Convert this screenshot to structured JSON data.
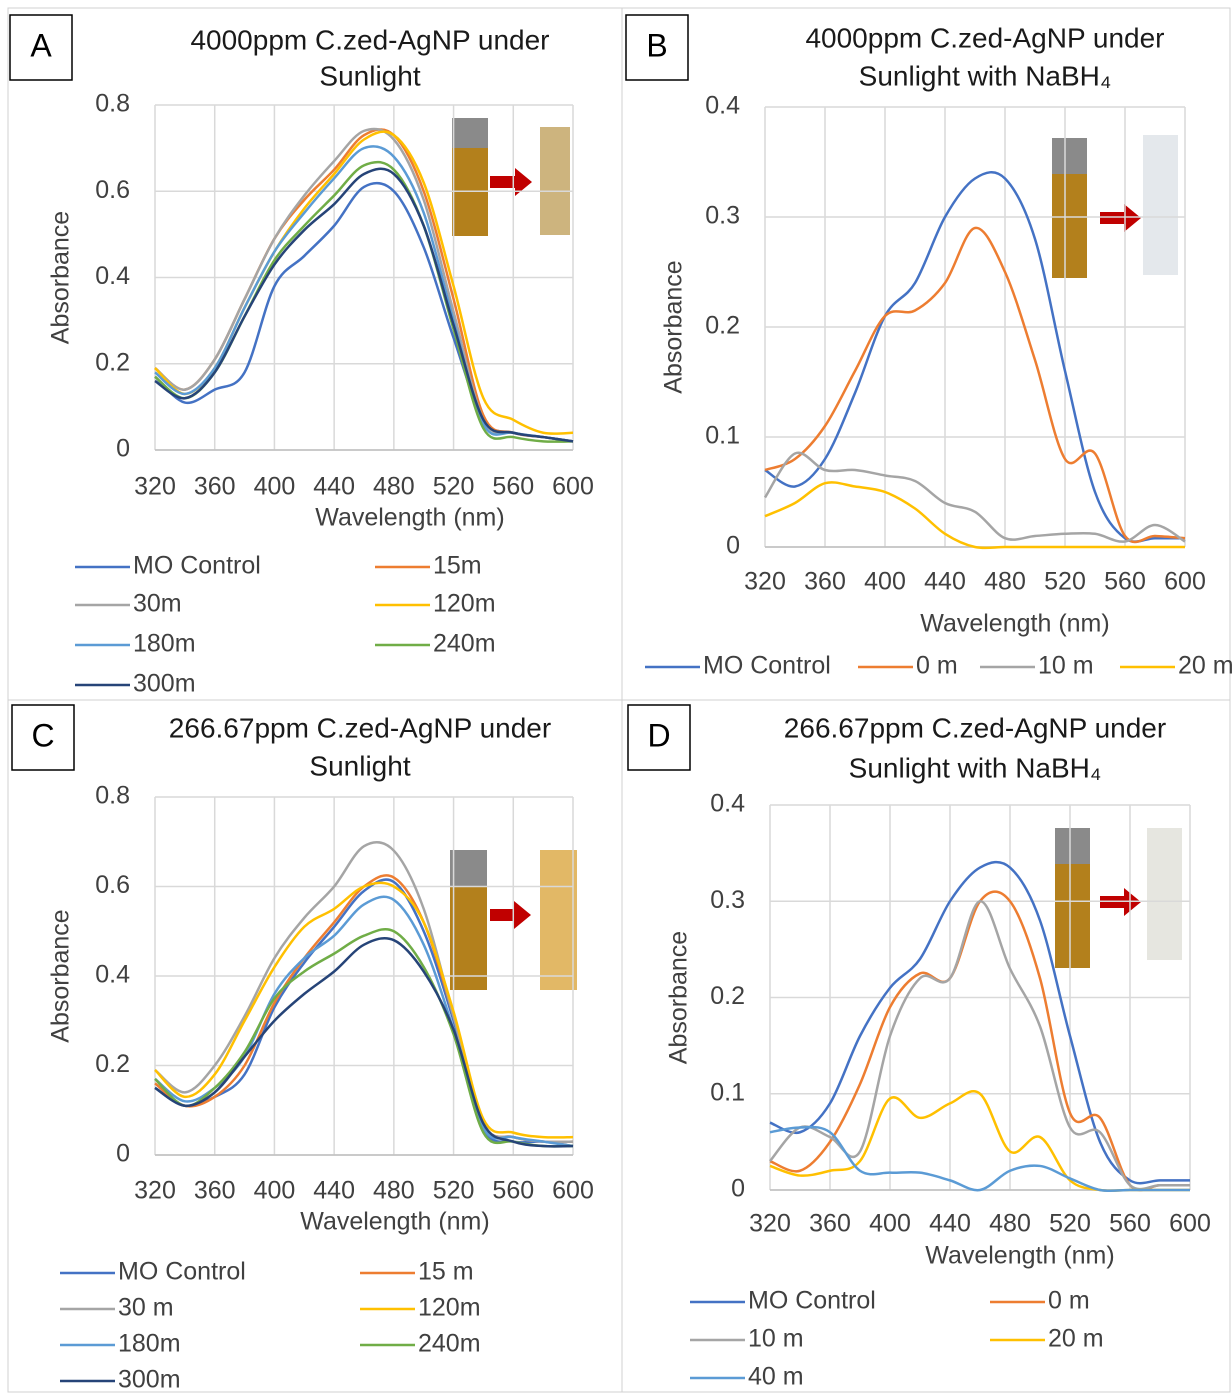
{
  "chart_data": [
    {
      "type": "line",
      "panel": "A",
      "title": [
        "4000ppm C.zed-AgNP under",
        "Sunlight"
      ],
      "x_label": "Wavelength (nm)",
      "y_label": "Absorbance",
      "x": [
        320,
        340,
        360,
        380,
        400,
        420,
        440,
        460,
        480,
        500,
        520,
        540,
        560,
        580,
        600
      ],
      "xlim": [
        320,
        600
      ],
      "xticks": [
        320,
        360,
        400,
        440,
        480,
        520,
        560,
        600
      ],
      "ylim": [
        0,
        0.8
      ],
      "yticks": [
        0,
        0.2,
        0.4,
        0.6,
        0.8
      ],
      "grid": true,
      "series": [
        {
          "name": "MO Control",
          "color": "#4472c4",
          "values": [
            0.17,
            0.11,
            0.14,
            0.18,
            0.38,
            0.45,
            0.52,
            0.61,
            0.6,
            0.47,
            0.26,
            0.07,
            0.04,
            0.03,
            0.02
          ]
        },
        {
          "name": "15m",
          "color": "#ed7d31",
          "values": [
            0.19,
            0.14,
            0.21,
            0.35,
            0.49,
            0.58,
            0.65,
            0.73,
            0.73,
            0.6,
            0.35,
            0.08,
            0.04,
            0.03,
            0.02
          ]
        },
        {
          "name": "30m",
          "color": "#a5a5a5",
          "values": [
            0.19,
            0.14,
            0.21,
            0.35,
            0.49,
            0.59,
            0.67,
            0.74,
            0.72,
            0.58,
            0.32,
            0.07,
            0.04,
            0.03,
            0.02
          ]
        },
        {
          "name": "120m",
          "color": "#ffc000",
          "values": [
            0.19,
            0.13,
            0.19,
            0.33,
            0.46,
            0.56,
            0.64,
            0.72,
            0.73,
            0.62,
            0.38,
            0.12,
            0.07,
            0.04,
            0.04
          ]
        },
        {
          "name": "180m",
          "color": "#5b9bd5",
          "values": [
            0.18,
            0.13,
            0.19,
            0.33,
            0.46,
            0.55,
            0.63,
            0.7,
            0.68,
            0.55,
            0.3,
            0.06,
            0.04,
            0.03,
            0.02
          ]
        },
        {
          "name": "240m",
          "color": "#70ad47",
          "values": [
            0.17,
            0.12,
            0.18,
            0.31,
            0.44,
            0.52,
            0.59,
            0.66,
            0.65,
            0.52,
            0.28,
            0.05,
            0.03,
            0.02,
            0.02
          ]
        },
        {
          "name": "300m",
          "color": "#264478",
          "values": [
            0.16,
            0.12,
            0.18,
            0.31,
            0.43,
            0.51,
            0.57,
            0.64,
            0.64,
            0.52,
            0.29,
            0.07,
            0.04,
            0.03,
            0.02
          ]
        }
      ]
    },
    {
      "type": "line",
      "panel": "B",
      "title": [
        "4000ppm C.zed-AgNP under",
        "Sunlight with NaBH₄"
      ],
      "x_label": "Wavelength (nm)",
      "y_label": "Absorbance",
      "x": [
        320,
        340,
        360,
        380,
        400,
        420,
        440,
        460,
        480,
        500,
        520,
        540,
        560,
        580,
        600
      ],
      "xlim": [
        320,
        600
      ],
      "xticks": [
        320,
        360,
        400,
        440,
        480,
        520,
        560,
        600
      ],
      "ylim": [
        0,
        0.4
      ],
      "yticks": [
        0,
        0.1,
        0.2,
        0.3,
        0.4
      ],
      "grid": true,
      "series": [
        {
          "name": "MO Control",
          "color": "#4472c4",
          "values": [
            0.07,
            0.055,
            0.08,
            0.14,
            0.21,
            0.24,
            0.3,
            0.335,
            0.335,
            0.28,
            0.16,
            0.05,
            0.008,
            0.008,
            0.008
          ]
        },
        {
          "name": "0 m",
          "color": "#ed7d31",
          "values": [
            0.07,
            0.08,
            0.11,
            0.16,
            0.21,
            0.215,
            0.24,
            0.29,
            0.25,
            0.17,
            0.08,
            0.085,
            0.01,
            0.01,
            0.008
          ]
        },
        {
          "name": "10 m",
          "color": "#a5a5a5",
          "values": [
            0.045,
            0.085,
            0.07,
            0.07,
            0.065,
            0.06,
            0.04,
            0.032,
            0.008,
            0.01,
            0.012,
            0.012,
            0.005,
            0.02,
            0.005
          ]
        },
        {
          "name": "20 m",
          "color": "#ffc000",
          "values": [
            0.028,
            0.04,
            0.058,
            0.055,
            0.05,
            0.035,
            0.012,
            0,
            0,
            0,
            0,
            0,
            0,
            0,
            0
          ]
        }
      ]
    },
    {
      "type": "line",
      "panel": "C",
      "title": [
        "266.67ppm C.zed-AgNP under",
        "Sunlight"
      ],
      "x_label": "Wavelength (nm)",
      "y_label": "Absorbance",
      "x": [
        320,
        340,
        360,
        380,
        400,
        420,
        440,
        460,
        480,
        500,
        520,
        540,
        560,
        580,
        600
      ],
      "xlim": [
        320,
        600
      ],
      "xticks": [
        320,
        360,
        400,
        440,
        480,
        520,
        560,
        600
      ],
      "ylim": [
        0,
        0.8
      ],
      "yticks": [
        0,
        0.2,
        0.4,
        0.6,
        0.8
      ],
      "grid": true,
      "series": [
        {
          "name": "MO Control",
          "color": "#4472c4",
          "values": [
            0.15,
            0.11,
            0.13,
            0.18,
            0.33,
            0.43,
            0.51,
            0.59,
            0.61,
            0.5,
            0.3,
            0.06,
            0.03,
            0.03,
            0.02
          ]
        },
        {
          "name": "15 m",
          "color": "#ed7d31",
          "values": [
            0.16,
            0.11,
            0.13,
            0.2,
            0.34,
            0.44,
            0.52,
            0.6,
            0.62,
            0.52,
            0.31,
            0.07,
            0.04,
            0.03,
            0.03
          ]
        },
        {
          "name": "30 m",
          "color": "#a5a5a5",
          "values": [
            0.19,
            0.14,
            0.2,
            0.31,
            0.44,
            0.53,
            0.6,
            0.69,
            0.68,
            0.55,
            0.31,
            0.07,
            0.04,
            0.03,
            0.03
          ]
        },
        {
          "name": "120m",
          "color": "#ffc000",
          "values": [
            0.19,
            0.13,
            0.18,
            0.3,
            0.42,
            0.51,
            0.55,
            0.6,
            0.6,
            0.52,
            0.32,
            0.08,
            0.05,
            0.04,
            0.04
          ]
        },
        {
          "name": "180m",
          "color": "#5b9bd5",
          "values": [
            0.17,
            0.12,
            0.15,
            0.22,
            0.36,
            0.44,
            0.49,
            0.56,
            0.57,
            0.47,
            0.28,
            0.06,
            0.04,
            0.03,
            0.02
          ]
        },
        {
          "name": "240m",
          "color": "#70ad47",
          "values": [
            0.17,
            0.11,
            0.15,
            0.23,
            0.35,
            0.41,
            0.45,
            0.49,
            0.5,
            0.42,
            0.27,
            0.05,
            0.03,
            0.02,
            0.02
          ]
        },
        {
          "name": "300m",
          "color": "#264478",
          "values": [
            0.15,
            0.11,
            0.14,
            0.22,
            0.3,
            0.36,
            0.41,
            0.47,
            0.48,
            0.41,
            0.28,
            0.07,
            0.03,
            0.02,
            0.02
          ]
        }
      ]
    },
    {
      "type": "line",
      "panel": "D",
      "title": [
        "266.67ppm C.zed-AgNP under",
        "Sunlight with NaBH₄"
      ],
      "x_label": "Wavelength (nm)",
      "y_label": "Absorbance",
      "x": [
        320,
        340,
        360,
        380,
        400,
        420,
        440,
        460,
        480,
        500,
        520,
        540,
        560,
        580,
        600
      ],
      "xlim": [
        320,
        600
      ],
      "xticks": [
        320,
        360,
        400,
        440,
        480,
        520,
        560,
        600
      ],
      "ylim": [
        0,
        0.4
      ],
      "yticks": [
        0,
        0.1,
        0.2,
        0.3,
        0.4
      ],
      "grid": true,
      "series": [
        {
          "name": "MO Control",
          "color": "#4472c4",
          "values": [
            0.07,
            0.06,
            0.09,
            0.16,
            0.21,
            0.24,
            0.3,
            0.335,
            0.335,
            0.28,
            0.16,
            0.05,
            0.01,
            0.01,
            0.01
          ]
        },
        {
          "name": "0 m",
          "color": "#ed7d31",
          "values": [
            0.03,
            0.02,
            0.05,
            0.11,
            0.19,
            0.225,
            0.22,
            0.3,
            0.3,
            0.22,
            0.08,
            0.075,
            0.005,
            0.005,
            0.005
          ]
        },
        {
          "name": "10 m",
          "color": "#a5a5a5",
          "values": [
            0.03,
            0.065,
            0.055,
            0.04,
            0.16,
            0.22,
            0.22,
            0.3,
            0.23,
            0.17,
            0.065,
            0.06,
            0.005,
            0.005,
            0.005
          ]
        },
        {
          "name": "20 m",
          "color": "#ffc000",
          "values": [
            0.025,
            0.015,
            0.02,
            0.03,
            0.095,
            0.075,
            0.09,
            0.1,
            0.04,
            0.055,
            0.01,
            0,
            0,
            0,
            0
          ]
        },
        {
          "name": "40 m",
          "color": "#5b9bd5",
          "values": [
            0.06,
            0.065,
            0.06,
            0.02,
            0.018,
            0.018,
            0.01,
            0,
            0.02,
            0.025,
            0.012,
            0,
            0,
            0,
            0
          ]
        }
      ]
    }
  ]
}
